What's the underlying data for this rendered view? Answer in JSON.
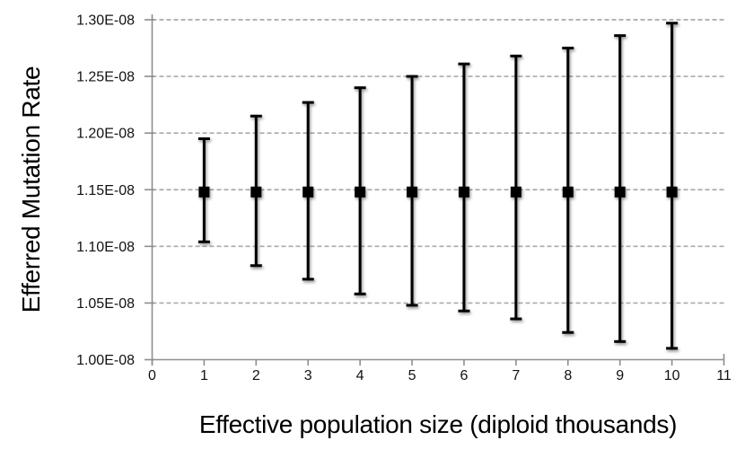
{
  "chart_data": {
    "type": "scatter",
    "title": "",
    "xlabel": "Effective population size (diploid thousands)",
    "ylabel": "Efferred Mutation Rate",
    "x": [
      1,
      2,
      3,
      4,
      5,
      6,
      7,
      8,
      9,
      10
    ],
    "y": [
      1.148e-08,
      1.148e-08,
      1.148e-08,
      1.148e-08,
      1.148e-08,
      1.148e-08,
      1.148e-08,
      1.148e-08,
      1.148e-08,
      1.148e-08
    ],
    "error_upper_abs": [
      1.195e-08,
      1.215e-08,
      1.227e-08,
      1.24e-08,
      1.25e-08,
      1.261e-08,
      1.268e-08,
      1.275e-08,
      1.286e-08,
      1.297e-08
    ],
    "error_lower_abs": [
      1.104e-08,
      1.083e-08,
      1.071e-08,
      1.058e-08,
      1.048e-08,
      1.043e-08,
      1.036e-08,
      1.024e-08,
      1.016e-08,
      1.01e-08
    ],
    "xlim": [
      0,
      11
    ],
    "ylim": [
      1e-08,
      1.3e-08
    ],
    "xticks": [
      0,
      1,
      2,
      3,
      4,
      5,
      6,
      7,
      8,
      9,
      10,
      11
    ],
    "xtick_labels": [
      "0",
      "1",
      "2",
      "3",
      "4",
      "5",
      "6",
      "7",
      "8",
      "9",
      "10",
      "11"
    ],
    "ytick_values": [
      1e-08,
      1.05e-08,
      1.1e-08,
      1.15e-08,
      1.2e-08,
      1.25e-08,
      1.3e-08
    ],
    "ytick_labels": [
      "1.00E-08",
      "1.05E-08",
      "1.10E-08",
      "1.15E-08",
      "1.20E-08",
      "1.25E-08",
      "1.30E-08"
    ],
    "grid": "horizontal-dashed",
    "legend": "none",
    "marker": "filled-square-with-error-bars"
  },
  "colors": {
    "background": "#ffffff",
    "series": "#000000",
    "axis": "#8e8e8e",
    "gridline": "#aaaaaa",
    "text": "#111111"
  }
}
